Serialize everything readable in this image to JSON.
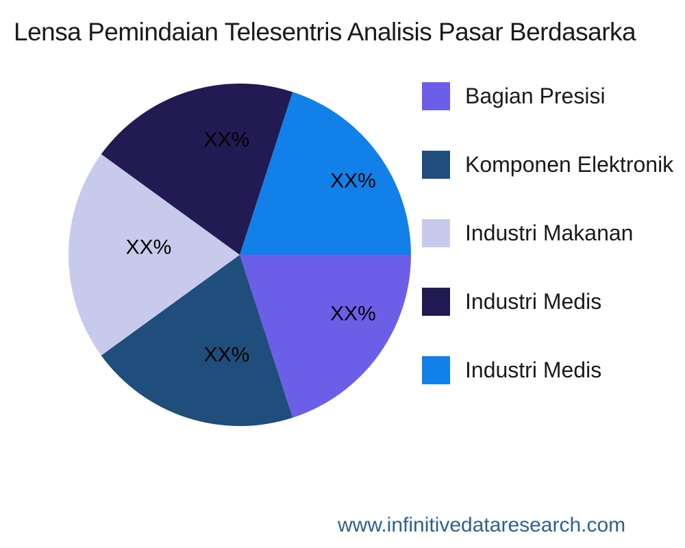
{
  "title": "Lensa Pemindaian Telesentris Analisis Pasar Berdasarka",
  "watermark": {
    "text": "www.infinitivedataresearch.com",
    "color": "#2E6191"
  },
  "chart_data": {
    "type": "pie",
    "title": "Lensa Pemindaian Telesentris Analisis Pasar Berdasarka",
    "legend_position": "right",
    "start_angle_deg": 0,
    "direction": "clockwise",
    "slices": [
      {
        "label": "Bagian Presisi",
        "value": 20,
        "display": "XX%",
        "color": "#6C5FE7"
      },
      {
        "label": "Komponen Elektronik",
        "value": 20,
        "display": "XX%",
        "color": "#1F4E7C"
      },
      {
        "label": "Industri Makanan",
        "value": 20,
        "display": "XX%",
        "color": "#C8CAEC"
      },
      {
        "label": "Industri Medis",
        "value": 20,
        "display": "XX%",
        "color": "#221A53"
      },
      {
        "label": "Industri Medis",
        "value": 20,
        "display": "XX%",
        "color": "#1180E8"
      }
    ]
  }
}
